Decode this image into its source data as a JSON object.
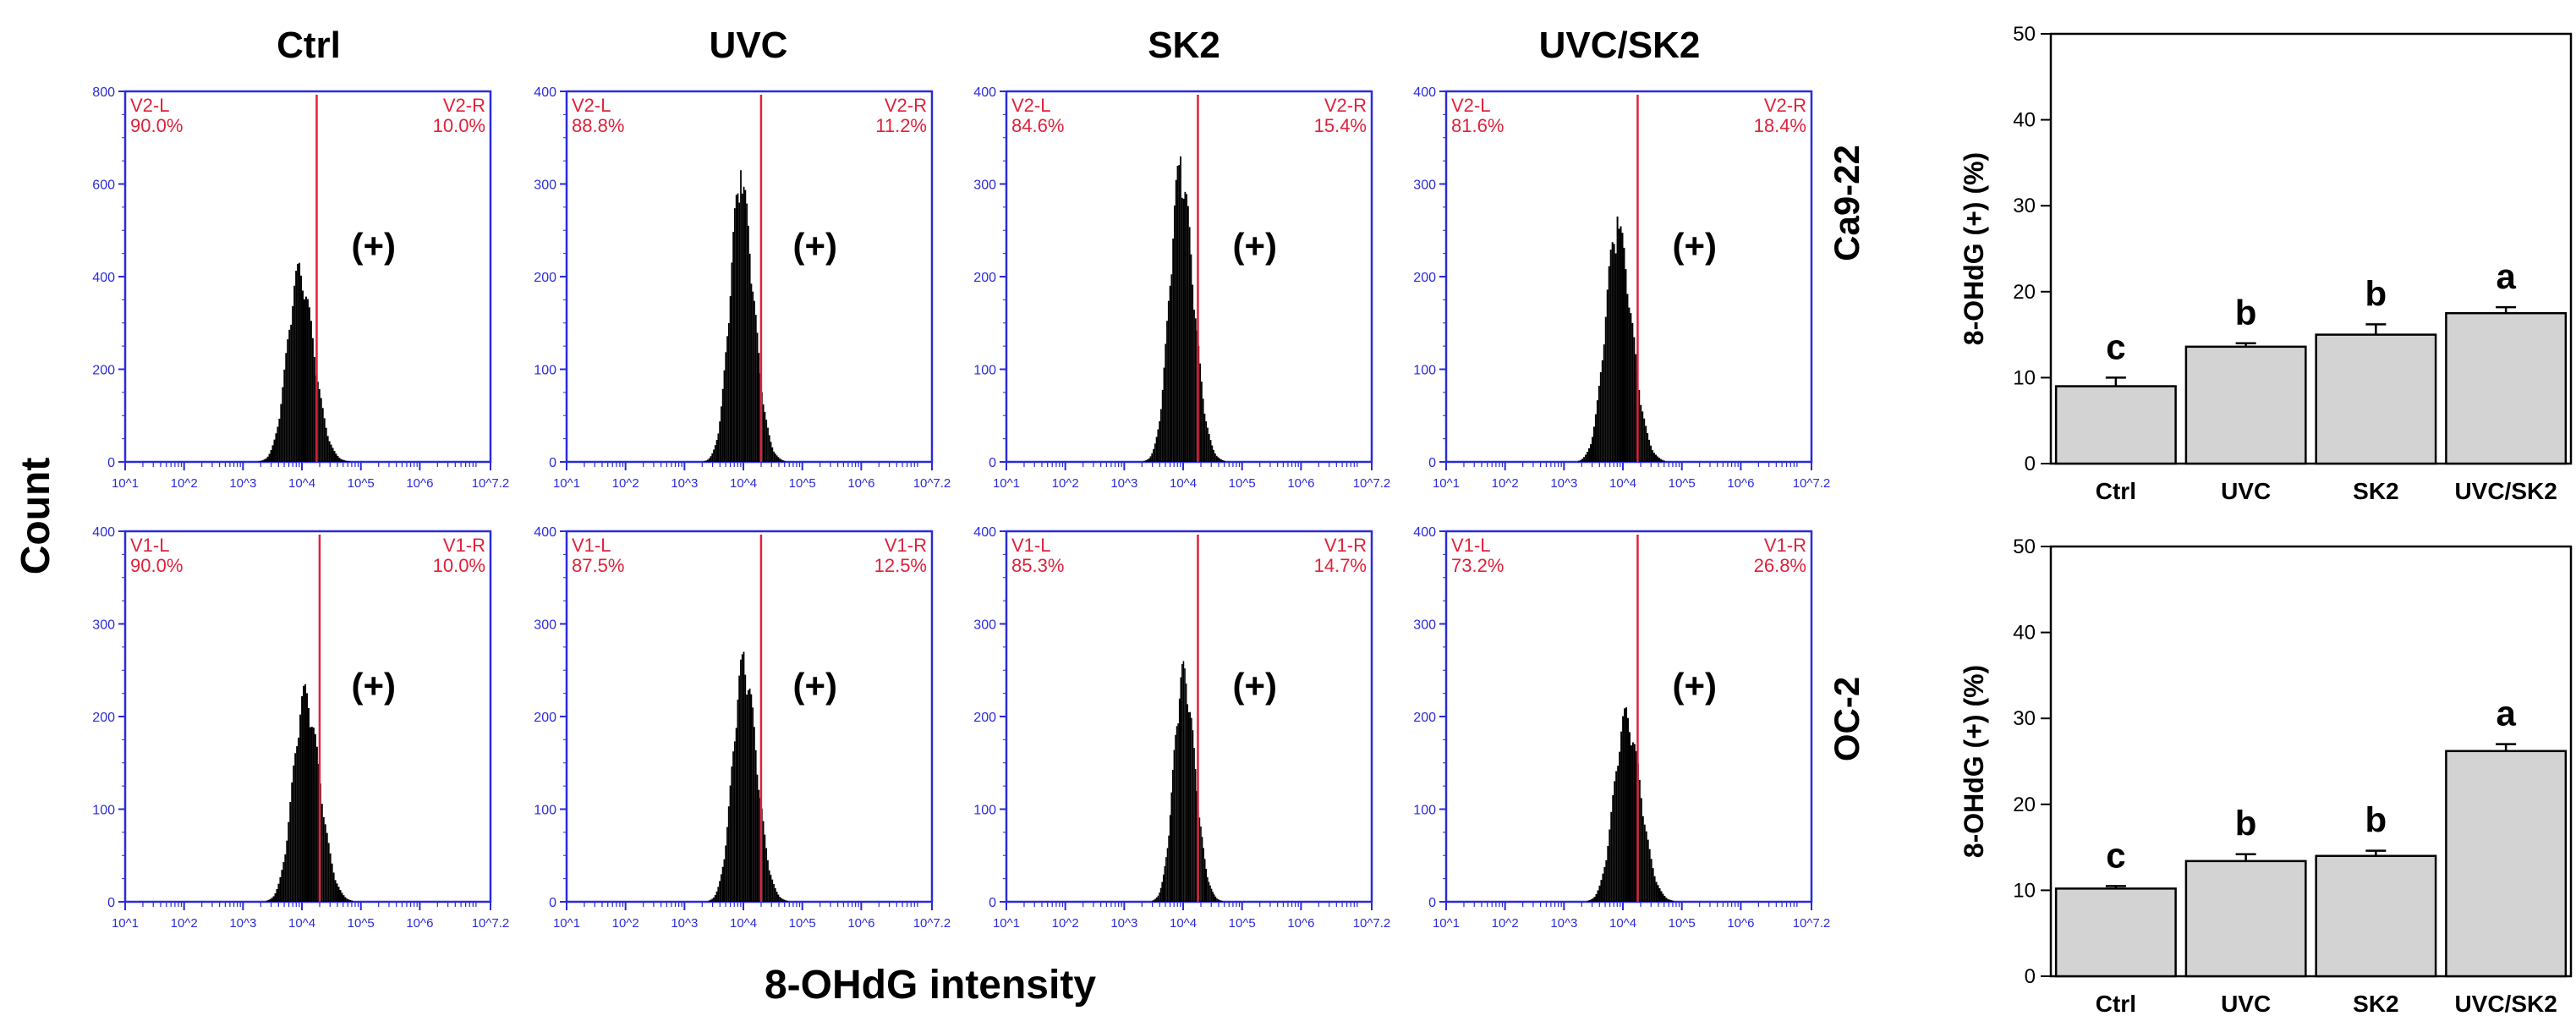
{
  "figure": {
    "y_axis_label": "Count",
    "x_axis_label": "8-OHdG intensity",
    "group_labels": [
      "Ctrl",
      "UVC",
      "SK2",
      "UVC/SK2"
    ],
    "row_labels": [
      "Ca9-22",
      "OC-2"
    ],
    "positive_marker": "(+)"
  },
  "colors": {
    "frame": "#2b2bd9",
    "gate": "#e0213b",
    "histogram": "#000000",
    "bar_fill": "#d3d3d3",
    "text": "#000000"
  },
  "chart_data": [
    {
      "type": "histogram",
      "row": "Ca9-22",
      "group": "Ctrl",
      "gate_left_label": "V2-L",
      "gate_left_pct": "90.0%",
      "gate_right_label": "V2-R",
      "gate_right_pct": "10.0%",
      "yticks": [
        "0",
        "200",
        "400",
        "600",
        "800"
      ],
      "ymax": 800,
      "xticks": [
        "10^1",
        "10^2",
        "10^3",
        "10^4",
        "10^5",
        "10^6",
        "10^7.2"
      ],
      "xlim_log": [
        1,
        7.2
      ],
      "gate_log": 4.25,
      "peak_log": 3.95,
      "peak_count": 430,
      "spread": 0.2
    },
    {
      "type": "histogram",
      "row": "Ca9-22",
      "group": "UVC",
      "gate_left_label": "V2-L",
      "gate_left_pct": "88.8%",
      "gate_right_label": "V2-R",
      "gate_right_pct": "11.2%",
      "yticks": [
        "0",
        "100",
        "200",
        "300",
        "400"
      ],
      "ymax": 400,
      "xticks": [
        "10^1",
        "10^2",
        "10^3",
        "10^4",
        "10^5",
        "10^6",
        "10^7.2"
      ],
      "xlim_log": [
        1,
        7.2
      ],
      "gate_log": 4.3,
      "peak_log": 3.95,
      "peak_count": 315,
      "spread": 0.18
    },
    {
      "type": "histogram",
      "row": "Ca9-22",
      "group": "SK2",
      "gate_left_label": "V2-L",
      "gate_left_pct": "84.6%",
      "gate_right_label": "V2-R",
      "gate_right_pct": "15.4%",
      "yticks": [
        "0",
        "100",
        "200",
        "300",
        "400"
      ],
      "ymax": 400,
      "xticks": [
        "10^1",
        "10^2",
        "10^3",
        "10^4",
        "10^5",
        "10^6",
        "10^7.2"
      ],
      "xlim_log": [
        1,
        7.2
      ],
      "gate_log": 4.25,
      "peak_log": 3.95,
      "peak_count": 330,
      "spread": 0.18
    },
    {
      "type": "histogram",
      "row": "Ca9-22",
      "group": "UVC/SK2",
      "gate_left_label": "V2-L",
      "gate_left_pct": "81.6%",
      "gate_right_label": "V2-R",
      "gate_right_pct": "18.4%",
      "yticks": [
        "0",
        "100",
        "200",
        "300",
        "400"
      ],
      "ymax": 400,
      "xticks": [
        "10^1",
        "10^2",
        "10^3",
        "10^4",
        "10^5",
        "10^6",
        "10^7.2"
      ],
      "xlim_log": [
        1,
        7.2
      ],
      "gate_log": 4.25,
      "peak_log": 3.9,
      "peak_count": 265,
      "spread": 0.2
    },
    {
      "type": "histogram",
      "row": "OC-2",
      "group": "Ctrl",
      "gate_left_label": "V1-L",
      "gate_left_pct": "90.0%",
      "gate_right_label": "V1-R",
      "gate_right_pct": "10.0%",
      "yticks": [
        "0",
        "100",
        "200",
        "300",
        "400"
      ],
      "ymax": 400,
      "xticks": [
        "10^1",
        "10^2",
        "10^3",
        "10^4",
        "10^5",
        "10^6",
        "10^7.2"
      ],
      "xlim_log": [
        1,
        7.2
      ],
      "gate_log": 4.3,
      "peak_log": 4.05,
      "peak_count": 235,
      "spread": 0.2
    },
    {
      "type": "histogram",
      "row": "OC-2",
      "group": "UVC",
      "gate_left_label": "V1-L",
      "gate_left_pct": "87.5%",
      "gate_right_label": "V1-R",
      "gate_right_pct": "12.5%",
      "yticks": [
        "0",
        "100",
        "200",
        "300",
        "400"
      ],
      "ymax": 400,
      "xticks": [
        "10^1",
        "10^2",
        "10^3",
        "10^4",
        "10^5",
        "10^6",
        "10^7.2"
      ],
      "xlim_log": [
        1,
        7.2
      ],
      "gate_log": 4.3,
      "peak_log": 4.0,
      "peak_count": 270,
      "spread": 0.18
    },
    {
      "type": "histogram",
      "row": "OC-2",
      "group": "SK2",
      "gate_left_label": "V1-L",
      "gate_left_pct": "85.3%",
      "gate_right_label": "V1-R",
      "gate_right_pct": "14.7%",
      "yticks": [
        "0",
        "100",
        "200",
        "300",
        "400"
      ],
      "ymax": 400,
      "xticks": [
        "10^1",
        "10^2",
        "10^3",
        "10^4",
        "10^5",
        "10^6",
        "10^7.2"
      ],
      "xlim_log": [
        1,
        7.2
      ],
      "gate_log": 4.25,
      "peak_log": 4.0,
      "peak_count": 260,
      "spread": 0.16
    },
    {
      "type": "histogram",
      "row": "OC-2",
      "group": "UVC/SK2",
      "gate_left_label": "V1-L",
      "gate_left_pct": "73.2%",
      "gate_right_label": "V1-R",
      "gate_right_pct": "26.8%",
      "yticks": [
        "0",
        "100",
        "200",
        "300",
        "400"
      ],
      "ymax": 400,
      "xticks": [
        "10^1",
        "10^2",
        "10^3",
        "10^4",
        "10^5",
        "10^6",
        "10^7.2"
      ],
      "xlim_log": [
        1,
        7.2
      ],
      "gate_log": 4.25,
      "peak_log": 4.05,
      "peak_count": 210,
      "spread": 0.2
    },
    {
      "type": "bar",
      "row": "Ca9-22",
      "title": "Ca9-22",
      "ylabel": "8-OHdG (+) (%)",
      "categories": [
        "Ctrl",
        "UVC",
        "SK2",
        "UVC/SK2"
      ],
      "values": [
        9.0,
        13.6,
        15.0,
        17.5
      ],
      "errors": [
        1.0,
        0.4,
        1.2,
        0.7
      ],
      "letters": [
        "c",
        "b",
        "b",
        "a"
      ],
      "ylim": [
        0,
        50
      ],
      "yticks": [
        0,
        10,
        20,
        30,
        40,
        50
      ]
    },
    {
      "type": "bar",
      "row": "OC-2",
      "title": "OC-2",
      "ylabel": "8-OHdG (+) (%)",
      "categories": [
        "Ctrl",
        "UVC",
        "SK2",
        "UVC/SK2"
      ],
      "values": [
        10.2,
        13.4,
        14.0,
        26.2
      ],
      "errors": [
        0.3,
        0.8,
        0.6,
        0.8
      ],
      "letters": [
        "c",
        "b",
        "b",
        "a"
      ],
      "ylim": [
        0,
        50
      ],
      "yticks": [
        0,
        10,
        20,
        30,
        40,
        50
      ]
    }
  ]
}
